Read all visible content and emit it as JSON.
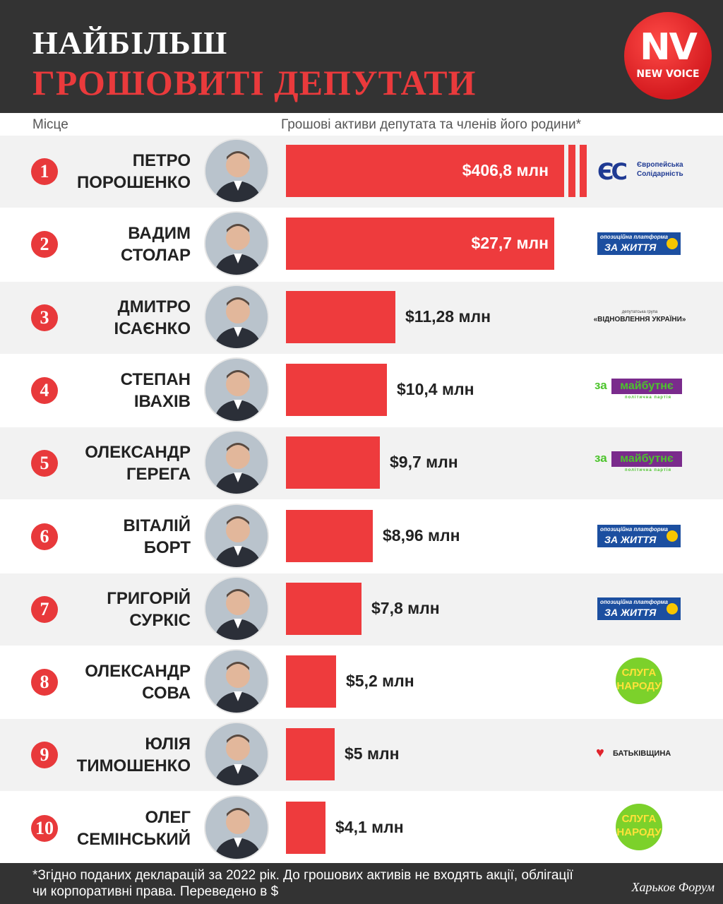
{
  "header": {
    "title_line1": "НАЙБІЛЬШ",
    "title_line2": "ГРОШОВИТІ ДЕПУТАТИ",
    "logo_main": "NV",
    "logo_sub": "NEW VOICE"
  },
  "columns": {
    "place": "Місце",
    "assets": "Грошові активи депутата та членів його родини*"
  },
  "chart_data": {
    "type": "bar",
    "orientation": "horizontal",
    "axis_break_on_first_bar": true,
    "unit": "$ млн",
    "categories": [
      "ПЕТРО ПОРОШЕНКО",
      "ВАДИМ СТОЛАР",
      "ДМИТРО ІСАЄНКО",
      "СТЕПАН ІВАХІВ",
      "ОЛЕКСАНДР ГЕРЕГА",
      "ВІТАЛІЙ БОРТ",
      "ГРИГОРІЙ СУРКІС",
      "ОЛЕКСАНДР СОВА",
      "ЮЛІЯ ТИМОШЕНКО",
      "ОЛЕГ СЕМІНСЬКИЙ"
    ],
    "values": [
      406.8,
      27.7,
      11.28,
      10.4,
      9.7,
      8.96,
      7.8,
      5.2,
      5,
      4.1
    ],
    "rows": [
      {
        "rank": "1",
        "first": "ПЕТРО",
        "last": "ПОРОШЕНКО",
        "value": 406.8,
        "label": "$406,8 млн",
        "party": "es",
        "party_text1": "Європейська",
        "party_text2": "Солідарність",
        "party_mark": "ЄС"
      },
      {
        "rank": "2",
        "first": "ВАДИМ",
        "last": "СТОЛАР",
        "value": 27.7,
        "label": "$27,7 млн",
        "party": "opzzh",
        "party_text1": "опозиційна платформа",
        "party_text2": "ЗА ЖИТТЯ"
      },
      {
        "rank": "3",
        "first": "ДМИТРО",
        "last": "ІСАЄНКО",
        "value": 11.28,
        "label": "$11,28 млн",
        "party": "vidn",
        "party_text1": "депутатська група",
        "party_text2": "«ВІДНОВЛЕННЯ УКРАЇНИ»"
      },
      {
        "rank": "4",
        "first": "СТЕПАН",
        "last": "ІВАХІВ",
        "value": 10.4,
        "label": "$10,4 млн",
        "party": "zm",
        "party_text1": "за",
        "party_text2": "майбутнє",
        "party_text3": "політична партія"
      },
      {
        "rank": "5",
        "first": "ОЛЕКСАНДР",
        "last": "ГЕРЕГА",
        "value": 9.7,
        "label": "$9,7 млн",
        "party": "zm",
        "party_text1": "за",
        "party_text2": "майбутнє",
        "party_text3": "політична партія"
      },
      {
        "rank": "6",
        "first": "ВІТАЛІЙ",
        "last": "БОРТ",
        "value": 8.96,
        "label": "$8,96 млн",
        "party": "opzzh",
        "party_text1": "опозиційна платформа",
        "party_text2": "ЗА ЖИТТЯ"
      },
      {
        "rank": "7",
        "first": "ГРИГОРІЙ",
        "last": "СУРКІС",
        "value": 7.8,
        "label": "$7,8 млн",
        "party": "opzzh",
        "party_text1": "опозиційна платформа",
        "party_text2": "ЗА ЖИТТЯ"
      },
      {
        "rank": "8",
        "first": "ОЛЕКСАНДР",
        "last": "СОВА",
        "value": 5.2,
        "label": "$5,2 млн",
        "party": "sn",
        "party_text1": "СЛУГА",
        "party_text2": "НАРОДУ"
      },
      {
        "rank": "9",
        "first": "ЮЛІЯ",
        "last": "ТИМОШЕНКО",
        "value": 5,
        "label": "$5 млн",
        "party": "bat",
        "party_text1": "БАТЬКІВЩИНА"
      },
      {
        "rank": "10",
        "first": "ОЛЕГ",
        "last": "СЕМІНСЬКИЙ",
        "value": 4.1,
        "label": "$4,1 млн",
        "party": "sn",
        "party_text1": "СЛУГА",
        "party_text2": "НАРОДУ"
      }
    ]
  },
  "colors": {
    "accent_red": "#ee3b3d",
    "header_bg": "#333333",
    "row_shade": "#f2f2f2",
    "es_blue": "#1f3a93",
    "es_yellow": "#f5c400",
    "opzzh_blue": "#1c4fa0",
    "zm_green": "#4cc42c",
    "zm_purple": "#7a2b8c",
    "sn_green": "#7cd12b",
    "sn_yellow": "#ffe23a",
    "bat_red": "#e0242d"
  },
  "footer": {
    "note_line1": "*Згідно поданих декларацій за 2022 рік. До грошових активів не входять акції, облігації",
    "note_line2": "чи корпоративні права. Переведено в $",
    "watermark": "Харьков Форум"
  }
}
